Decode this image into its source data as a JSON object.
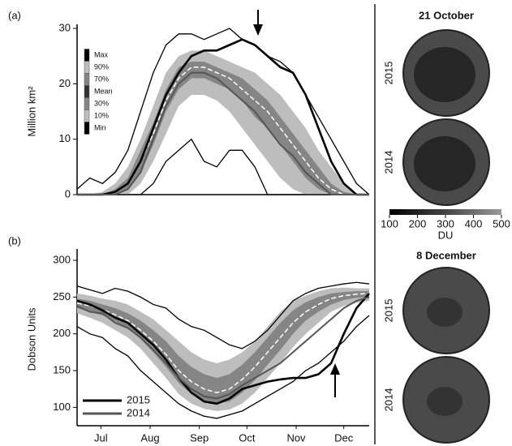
{
  "chart_data": [
    {
      "type": "line",
      "panel_label": "(a)",
      "y_label": "Million km²",
      "x": [
        0,
        8,
        16,
        24,
        32,
        40,
        48,
        56,
        64,
        72,
        80,
        88,
        96,
        104,
        112,
        120,
        128,
        136,
        144,
        152,
        160,
        168,
        176,
        184
      ],
      "xlim": [
        0,
        184
      ],
      "ylim": [
        0,
        30
      ],
      "yticks": [
        0,
        10,
        20,
        30
      ],
      "series": [
        {
          "name": "Max",
          "color": "#000000",
          "values": [
            1,
            3,
            2,
            4,
            8,
            15,
            22,
            27,
            29,
            29,
            28,
            29,
            30,
            28,
            27,
            25,
            24,
            22,
            18,
            14,
            10,
            6,
            2,
            0
          ]
        },
        {
          "name": "90%",
          "color": "#bdbdbd",
          "values": [
            0,
            0,
            0.5,
            2,
            5,
            10,
            16,
            22,
            25,
            26,
            26,
            25,
            24,
            23,
            22,
            20,
            18,
            15,
            12,
            8,
            5,
            2,
            0,
            0
          ]
        },
        {
          "name": "70%",
          "color": "#858585",
          "values": [
            0,
            0,
            0,
            1,
            3,
            8,
            13,
            19,
            23,
            24,
            24,
            23,
            22,
            21,
            19,
            17,
            14,
            11,
            8,
            5,
            2,
            0.5,
            0,
            0
          ]
        },
        {
          "name": "Mean",
          "color": "#ffffff",
          "values": [
            0,
            0,
            0,
            0.5,
            2,
            6,
            11,
            17,
            21,
            23,
            23,
            22,
            21,
            19,
            17,
            15,
            12,
            9,
            6,
            3,
            1,
            0,
            0,
            0
          ]
        },
        {
          "name": "30%",
          "color": "#858585",
          "values": [
            0,
            0,
            0,
            0,
            1,
            4,
            9,
            15,
            19,
            21,
            21,
            20,
            19,
            17,
            14,
            12,
            9,
            6,
            3,
            1,
            0,
            0,
            0,
            0
          ]
        },
        {
          "name": "10%",
          "color": "#bdbdbd",
          "values": [
            0,
            0,
            0,
            0,
            0,
            2,
            6,
            11,
            16,
            18,
            18,
            17,
            15,
            12,
            9,
            6,
            3,
            1,
            0,
            0,
            0,
            0,
            0,
            0
          ]
        },
        {
          "name": "Min",
          "color": "#000000",
          "values": [
            0,
            0,
            0,
            0,
            0,
            0,
            2,
            6,
            8,
            10,
            6,
            5,
            8,
            8,
            5,
            0,
            0,
            0,
            0,
            0,
            0,
            0,
            0,
            0
          ]
        },
        {
          "color": "#000000",
          "values": [
            0,
            0,
            0,
            0.5,
            2,
            6,
            12,
            18,
            22,
            25,
            26,
            26,
            27,
            28,
            27,
            25,
            23,
            22,
            18,
            12,
            6,
            2,
            0,
            0
          ]
        },
        {
          "color": "#555555",
          "values": [
            0,
            0,
            0,
            0,
            1,
            4,
            10,
            16,
            20,
            22,
            22,
            21,
            19,
            17,
            15,
            12,
            9,
            7,
            4,
            2,
            0,
            0,
            0,
            0
          ]
        }
      ]
    },
    {
      "type": "line",
      "panel_label": "(b)",
      "y_label": "Dobson Units",
      "x": [
        0,
        8,
        16,
        24,
        32,
        40,
        48,
        56,
        64,
        72,
        80,
        88,
        96,
        104,
        112,
        120,
        128,
        136,
        144,
        152,
        160,
        168,
        176,
        184
      ],
      "xlim": [
        0,
        184
      ],
      "ylim": [
        75,
        310
      ],
      "yticks": [
        100,
        150,
        200,
        250,
        300
      ],
      "xticks": [
        {
          "value": 15,
          "label": "Jul"
        },
        {
          "value": 46,
          "label": "Aug"
        },
        {
          "value": 77,
          "label": "Sep"
        },
        {
          "value": 107,
          "label": "Oct"
        },
        {
          "value": 138,
          "label": "Nov"
        },
        {
          "value": 168,
          "label": "Dec"
        }
      ],
      "series": [
        {
          "color": "#000000",
          "values": [
            265,
            260,
            255,
            262,
            258,
            250,
            240,
            235,
            220,
            210,
            205,
            195,
            185,
            180,
            190,
            205,
            225,
            245,
            255,
            262,
            265,
            268,
            270,
            268
          ]
        },
        {
          "color": "#bdbdbd",
          "values": [
            255,
            252,
            248,
            245,
            240,
            230,
            220,
            205,
            190,
            175,
            165,
            160,
            165,
            175,
            190,
            210,
            230,
            245,
            252,
            258,
            262,
            263,
            262,
            262
          ]
        },
        {
          "color": "#858585",
          "values": [
            248,
            245,
            240,
            235,
            228,
            218,
            205,
            190,
            170,
            155,
            145,
            140,
            145,
            158,
            175,
            195,
            215,
            232,
            243,
            250,
            255,
            257,
            258,
            258
          ]
        },
        {
          "color": "#ffffff",
          "values": [
            242,
            238,
            233,
            226,
            218,
            205,
            190,
            172,
            150,
            135,
            125,
            120,
            125,
            138,
            155,
            175,
            195,
            215,
            230,
            240,
            248,
            252,
            254,
            255
          ]
        },
        {
          "color": "#858585",
          "values": [
            235,
            230,
            225,
            217,
            207,
            193,
            175,
            155,
            133,
            118,
            110,
            105,
            108,
            120,
            137,
            158,
            178,
            200,
            218,
            230,
            240,
            246,
            249,
            250
          ]
        },
        {
          "color": "#bdbdbd",
          "values": [
            228,
            222,
            215,
            205,
            195,
            180,
            160,
            140,
            118,
            105,
            98,
            95,
            97,
            105,
            120,
            140,
            160,
            182,
            200,
            215,
            230,
            238,
            242,
            245
          ]
        },
        {
          "color": "#000000",
          "values": [
            210,
            200,
            195,
            180,
            170,
            150,
            135,
            120,
            105,
            95,
            88,
            85,
            90,
            95,
            105,
            115,
            125,
            135,
            150,
            160,
            175,
            190,
            210,
            225
          ]
        },
        {
          "name": "2015",
          "color": "#000000",
          "values": [
            245,
            240,
            232,
            222,
            215,
            200,
            185,
            165,
            140,
            120,
            108,
            105,
            112,
            125,
            130,
            135,
            138,
            140,
            140,
            145,
            160,
            200,
            235,
            255
          ]
        },
        {
          "name": "2014",
          "color": "#555555",
          "values": [
            238,
            230,
            228,
            215,
            208,
            195,
            178,
            160,
            140,
            125,
            115,
            112,
            118,
            130,
            140,
            150,
            160,
            175,
            190,
            205,
            220,
            235,
            245,
            250
          ]
        }
      ]
    }
  ],
  "maps": {
    "panels": [
      {
        "title": "21 October",
        "years": [
          "2015",
          "2014"
        ]
      },
      {
        "title": "8 December",
        "years": [
          "2015",
          "2014"
        ]
      }
    ],
    "colorbar": {
      "label": "DU",
      "xlim": [
        100,
        500
      ],
      "xticks": [
        100,
        200,
        300,
        400,
        500
      ]
    }
  }
}
